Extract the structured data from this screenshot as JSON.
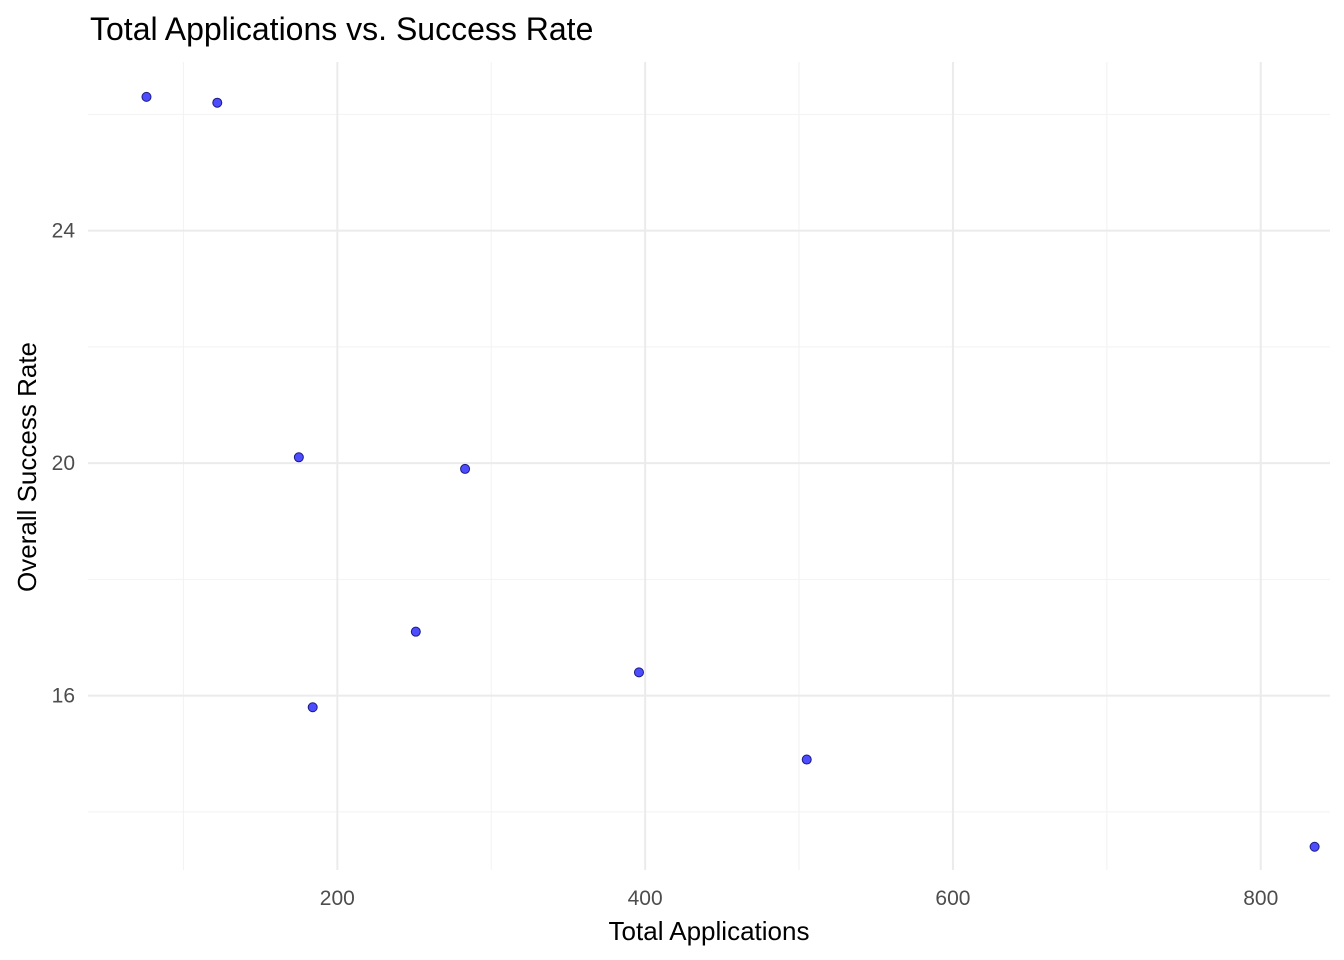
{
  "chart_data": {
    "type": "scatter",
    "title": "Total Applications vs. Success Rate",
    "xlabel": "Total Applications",
    "ylabel": "Overall Success Rate",
    "xlim": [
      38,
      845
    ],
    "ylim": [
      13.0,
      26.9
    ],
    "x_ticks": [
      200,
      400,
      600,
      800
    ],
    "x_minor_ticks": [
      100,
      300,
      500,
      700
    ],
    "y_ticks": [
      16,
      20,
      24
    ],
    "y_minor_ticks": [
      14,
      18,
      22,
      26
    ],
    "grid": true,
    "legend": "none",
    "point_color": "#4d4dff",
    "points": [
      {
        "x": 76,
        "y": 26.3
      },
      {
        "x": 122,
        "y": 26.2
      },
      {
        "x": 175,
        "y": 20.1
      },
      {
        "x": 184,
        "y": 15.8
      },
      {
        "x": 251,
        "y": 17.1
      },
      {
        "x": 283,
        "y": 19.9
      },
      {
        "x": 396,
        "y": 16.4
      },
      {
        "x": 505,
        "y": 14.9
      },
      {
        "x": 835,
        "y": 13.4
      }
    ]
  }
}
